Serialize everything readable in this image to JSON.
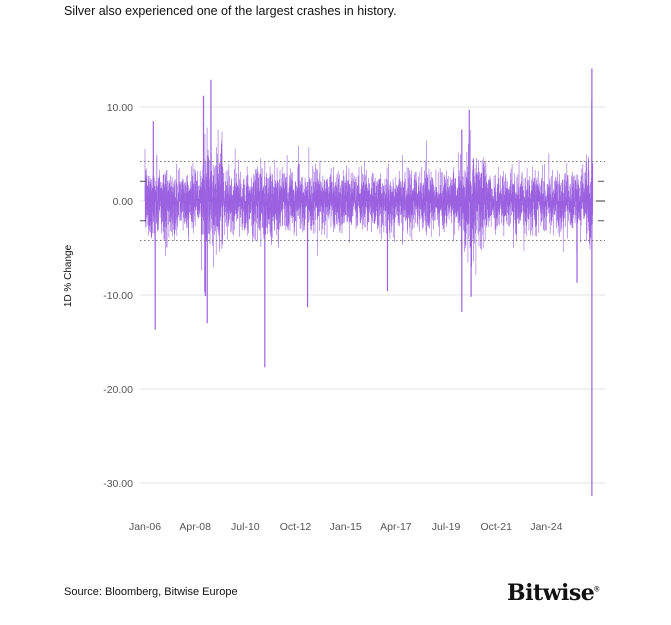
{
  "title": "Silver also experienced one of the largest crashes in history.",
  "source": "Source: Bloomberg, Bitwise Europe",
  "logo": "Bitwise",
  "chart_data": {
    "type": "bar",
    "ylabel": "1D % Change",
    "xlabel": "",
    "ylim": [
      -33,
      15
    ],
    "yticks": [
      10,
      0,
      -10,
      -20,
      -30
    ],
    "ytick_labels": [
      "10.00",
      "0.00",
      "-10.00",
      "-20.00",
      "-30.00"
    ],
    "xtick_labels": [
      "Jan-06",
      "Apr-08",
      "Jul-10",
      "Oct-12",
      "Jan-15",
      "Apr-17",
      "Jul-19",
      "Oct-21",
      "Jan-24"
    ],
    "xtick_dates": [
      "2006-01",
      "2008-04",
      "2010-07",
      "2012-10",
      "2015-01",
      "2017-04",
      "2019-07",
      "2021-10",
      "2024-01"
    ],
    "x_range": [
      "2006-01",
      "2026-02"
    ],
    "grid": "horizontal",
    "reference_lines": {
      "dotted": [
        4.2,
        -4.2
      ],
      "dash_marks": [
        2.1,
        -2.1
      ]
    },
    "series_color": "#9b61e0",
    "notable_points": [
      {
        "date": "2006-05",
        "value": 8.5
      },
      {
        "date": "2006-06",
        "value": -13.7
      },
      {
        "date": "2008-08",
        "value": 11.2
      },
      {
        "date": "2008-09",
        "value": -10.1
      },
      {
        "date": "2008-10",
        "value": -13.0
      },
      {
        "date": "2008-12",
        "value": 12.9
      },
      {
        "date": "2011-05",
        "value": -17.7
      },
      {
        "date": "2013-04",
        "value": -11.3
      },
      {
        "date": "2016-11",
        "value": -9.6
      },
      {
        "date": "2020-03",
        "value": -11.8
      },
      {
        "date": "2020-03",
        "value": 7.6
      },
      {
        "date": "2020-07",
        "value": 9.7
      },
      {
        "date": "2020-08",
        "value": -10.2
      },
      {
        "date": "2025-05",
        "value": -8.7
      },
      {
        "date": "2026-01",
        "value": 10.8
      },
      {
        "date": "2026-01",
        "value": 14.1
      },
      {
        "date": "2026-01",
        "value": -31.4
      }
    ]
  }
}
